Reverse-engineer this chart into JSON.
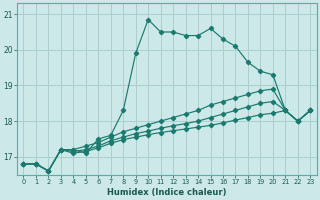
{
  "title": "",
  "xlabel": "Humidex (Indice chaleur)",
  "ylabel": "",
  "bg_color": "#cce8e8",
  "grid_color": "#aacece",
  "line_color": "#1a7a6e",
  "xlim": [
    -0.5,
    23.5
  ],
  "ylim": [
    16.5,
    21.3
  ],
  "yticks": [
    17,
    18,
    19,
    20,
    21
  ],
  "xticks": [
    0,
    1,
    2,
    3,
    4,
    5,
    6,
    7,
    8,
    9,
    10,
    11,
    12,
    13,
    14,
    15,
    16,
    17,
    18,
    19,
    20,
    21,
    22,
    23
  ],
  "series": [
    [
      16.8,
      16.8,
      16.6,
      17.2,
      17.2,
      17.1,
      17.5,
      17.6,
      18.3,
      19.9,
      20.85,
      20.5,
      20.5,
      20.4,
      20.4,
      20.6,
      20.3,
      20.1,
      19.65,
      19.4,
      19.3,
      18.3,
      18.0,
      18.3
    ],
    [
      16.8,
      16.8,
      16.6,
      17.2,
      17.2,
      17.3,
      17.4,
      17.55,
      17.7,
      17.8,
      17.9,
      18.0,
      18.1,
      18.2,
      18.3,
      18.45,
      18.55,
      18.65,
      18.75,
      18.85,
      18.9,
      18.3,
      18.0,
      18.3
    ],
    [
      16.8,
      16.8,
      16.6,
      17.2,
      17.15,
      17.2,
      17.3,
      17.45,
      17.55,
      17.65,
      17.72,
      17.8,
      17.87,
      17.93,
      18.0,
      18.1,
      18.2,
      18.3,
      18.4,
      18.5,
      18.55,
      18.3,
      18.0,
      18.3
    ],
    [
      16.8,
      16.8,
      16.6,
      17.2,
      17.1,
      17.15,
      17.25,
      17.38,
      17.48,
      17.55,
      17.62,
      17.68,
      17.73,
      17.78,
      17.83,
      17.88,
      17.95,
      18.03,
      18.1,
      18.18,
      18.22,
      18.3,
      18.0,
      18.3
    ]
  ]
}
